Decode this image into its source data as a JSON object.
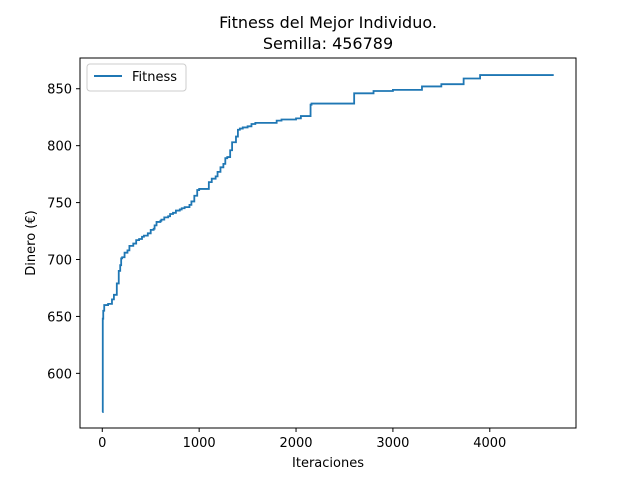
{
  "chart_data": {
    "type": "line",
    "title": "Fitness del Mejor Individuo.",
    "subtitle": "Semilla: 456789",
    "xlabel": "Iteraciones",
    "ylabel": "Dinero (€)",
    "xlim": [
      -230,
      4890
    ],
    "ylim": [
      552,
      877
    ],
    "xticks": [
      0,
      1000,
      2000,
      3000,
      4000
    ],
    "yticks": [
      600,
      650,
      700,
      750,
      800,
      850
    ],
    "grid": false,
    "legend_position": "top-left",
    "series": [
      {
        "name": "Fitness",
        "color": "#1f77b4",
        "step": true,
        "x": [
          0,
          5,
          10,
          20,
          60,
          100,
          120,
          150,
          170,
          185,
          195,
          205,
          230,
          260,
          280,
          320,
          350,
          380,
          410,
          430,
          470,
          500,
          530,
          540,
          560,
          600,
          610,
          640,
          680,
          700,
          730,
          760,
          800,
          820,
          850,
          900,
          920,
          950,
          980,
          1000,
          1100,
          1130,
          1170,
          1190,
          1220,
          1250,
          1270,
          1290,
          1320,
          1340,
          1380,
          1400,
          1420,
          1450,
          1500,
          1540,
          1580,
          1640,
          1700,
          1800,
          1850,
          1900,
          2000,
          2050,
          2150,
          2160,
          2200,
          2600,
          2800,
          2900,
          3000,
          3100,
          3200,
          3300,
          3500,
          3730,
          3900,
          4000,
          4200,
          4660
        ],
        "values": [
          566,
          648,
          655,
          660,
          661,
          665,
          669,
          679,
          690,
          695,
          701,
          702,
          706,
          708,
          712,
          714,
          717,
          718,
          720,
          721,
          723,
          726,
          727,
          730,
          733,
          734,
          735,
          737,
          738,
          740,
          741,
          743,
          744,
          745,
          746,
          748,
          751,
          756,
          761,
          762,
          768,
          771,
          773,
          777,
          781,
          784,
          789,
          790,
          796,
          803,
          808,
          814,
          815,
          816,
          817,
          819,
          820,
          820,
          820,
          822,
          823,
          823,
          824,
          826,
          836,
          837,
          837,
          846,
          848,
          848,
          849,
          849,
          849,
          852,
          854,
          859,
          862,
          862,
          862,
          862
        ]
      }
    ]
  }
}
